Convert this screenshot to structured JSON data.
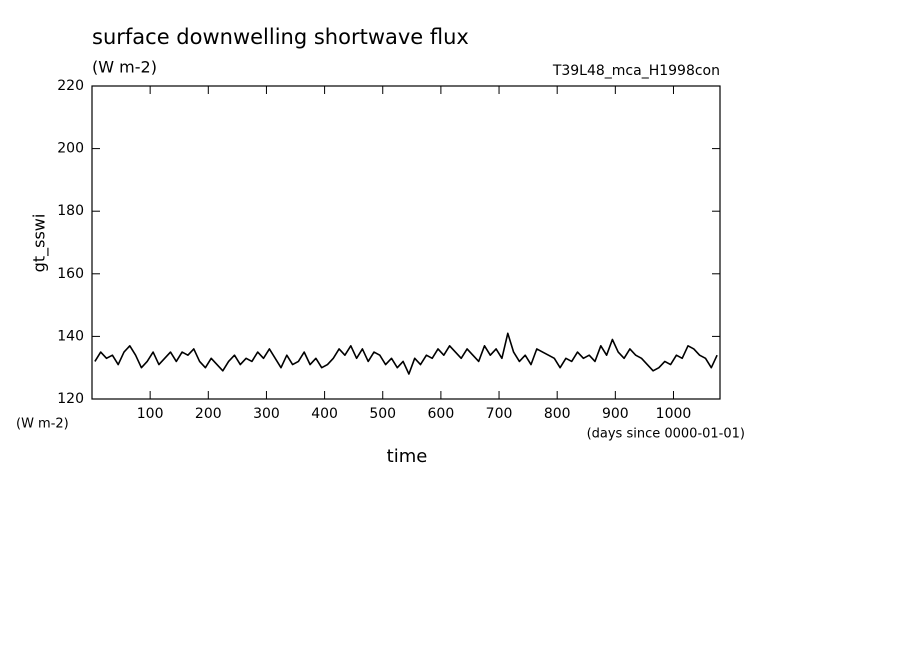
{
  "chart_data": {
    "type": "line",
    "title": "surface downwelling shortwave flux",
    "subtitle": "(W m-2)",
    "run_label": "T39L48_mca_H1998con",
    "y_label": "gt_sswi",
    "y_units": "(W m-2)",
    "x_units": "(days since 0000-01-01)",
    "x_label": "time",
    "color": "#000000",
    "xlim": [
      0,
      1080
    ],
    "xticks": [
      100,
      200,
      300,
      400,
      500,
      600,
      700,
      800,
      900,
      1000
    ],
    "ylim": [
      120,
      220
    ],
    "yticks": [
      120,
      140,
      160,
      180,
      200,
      220
    ],
    "x": [
      5,
      15,
      25,
      35,
      45,
      55,
      65,
      75,
      85,
      95,
      105,
      115,
      125,
      135,
      145,
      155,
      165,
      175,
      185,
      195,
      205,
      215,
      225,
      235,
      245,
      255,
      265,
      275,
      285,
      295,
      305,
      315,
      325,
      335,
      345,
      355,
      365,
      375,
      385,
      395,
      405,
      415,
      425,
      435,
      445,
      455,
      465,
      475,
      485,
      495,
      505,
      515,
      525,
      535,
      545,
      555,
      565,
      575,
      585,
      595,
      605,
      615,
      625,
      635,
      645,
      655,
      665,
      675,
      685,
      695,
      705,
      715,
      725,
      735,
      745,
      755,
      765,
      775,
      785,
      795,
      805,
      815,
      825,
      835,
      845,
      855,
      865,
      875,
      885,
      895,
      905,
      915,
      925,
      935,
      945,
      955,
      965,
      975,
      985,
      995,
      1005,
      1015,
      1025,
      1035,
      1045,
      1055,
      1065,
      1075
    ],
    "values": [
      132,
      135,
      133,
      134,
      131,
      135,
      137,
      134,
      130,
      132,
      135,
      131,
      133,
      135,
      132,
      135,
      134,
      136,
      132,
      130,
      133,
      131,
      129,
      132,
      134,
      131,
      133,
      132,
      135,
      133,
      136,
      133,
      130,
      134,
      131,
      132,
      135,
      131,
      133,
      130,
      131,
      133,
      136,
      134,
      137,
      133,
      136,
      132,
      135,
      134,
      131,
      133,
      130,
      132,
      128,
      133,
      131,
      134,
      133,
      136,
      134,
      137,
      135,
      133,
      136,
      134,
      132,
      137,
      134,
      136,
      133,
      141,
      135,
      132,
      134,
      131,
      136,
      135,
      134,
      133,
      130,
      133,
      132,
      135,
      133,
      134,
      132,
      137,
      134,
      139,
      135,
      133,
      136,
      134,
      133,
      131,
      129,
      130,
      132,
      131,
      134,
      133,
      137,
      136,
      134,
      133,
      130,
      134
    ]
  }
}
